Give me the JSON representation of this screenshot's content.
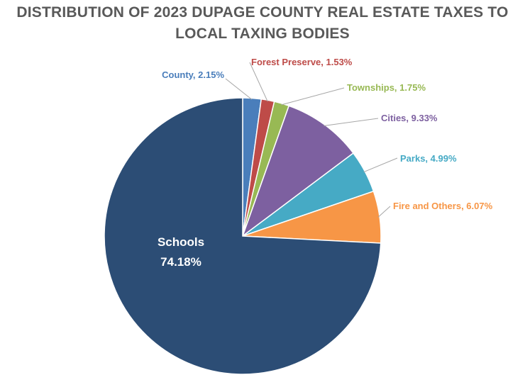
{
  "chart_data": {
    "type": "pie",
    "title_lines": [
      "DISTRIBUTION OF 2023 DUPAGE COUNTY REAL ESTATE TAXES TO",
      "LOCAL TAXING BODIES"
    ],
    "slices": [
      {
        "label": "County",
        "value": 2.15,
        "display": "2.15%",
        "color": "#4A7EBB"
      },
      {
        "label": "Forest Preserve",
        "value": 1.53,
        "display": "1.53%",
        "color": "#BE4B48"
      },
      {
        "label": "Townships",
        "value": 1.75,
        "display": "1.75%",
        "color": "#98B954"
      },
      {
        "label": "Cities",
        "value": 9.33,
        "display": "9.33%",
        "color": "#7D60A0"
      },
      {
        "label": "Parks",
        "value": 4.99,
        "display": "4.99%",
        "color": "#46AAC5"
      },
      {
        "label": "Fire and Others",
        "value": 6.07,
        "display": "6.07%",
        "color": "#F79646"
      },
      {
        "label": "Schools",
        "value": 74.18,
        "display": "74.18%",
        "color": "#2C4D75"
      }
    ],
    "start_angle": "12 o'clock",
    "direction": "clockwise",
    "legend": "none"
  }
}
